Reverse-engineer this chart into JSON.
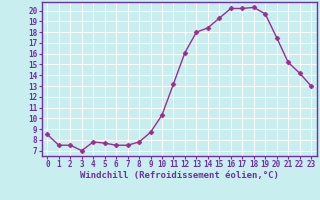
{
  "x": [
    0,
    1,
    2,
    3,
    4,
    5,
    6,
    7,
    8,
    9,
    10,
    11,
    12,
    13,
    14,
    15,
    16,
    17,
    18,
    19,
    20,
    21,
    22,
    23
  ],
  "y": [
    8.5,
    7.5,
    7.5,
    7.0,
    7.8,
    7.7,
    7.5,
    7.5,
    7.8,
    8.7,
    10.3,
    13.2,
    16.1,
    18.0,
    18.4,
    19.3,
    20.2,
    20.2,
    20.3,
    19.7,
    17.5,
    15.2,
    14.2,
    13.0
  ],
  "line_color": "#9b2d8e",
  "marker": "D",
  "markersize": 2.5,
  "linewidth": 1.0,
  "bg_color": "#c8eef0",
  "grid_color": "#ffffff",
  "xlabel": "Windchill (Refroidissement éolien,°C)",
  "ylabel": "",
  "title": "",
  "xlim": [
    -0.5,
    23.5
  ],
  "ylim": [
    6.5,
    20.8
  ],
  "yticks": [
    7,
    8,
    9,
    10,
    11,
    12,
    13,
    14,
    15,
    16,
    17,
    18,
    19,
    20
  ],
  "xticks": [
    0,
    1,
    2,
    3,
    4,
    5,
    6,
    7,
    8,
    9,
    10,
    11,
    12,
    13,
    14,
    15,
    16,
    17,
    18,
    19,
    20,
    21,
    22,
    23
  ],
  "tick_fontsize": 5.5,
  "xlabel_fontsize": 6.5,
  "axis_color": "#7030a0",
  "tick_color": "#7030a0",
  "spine_color": "#7030a0"
}
